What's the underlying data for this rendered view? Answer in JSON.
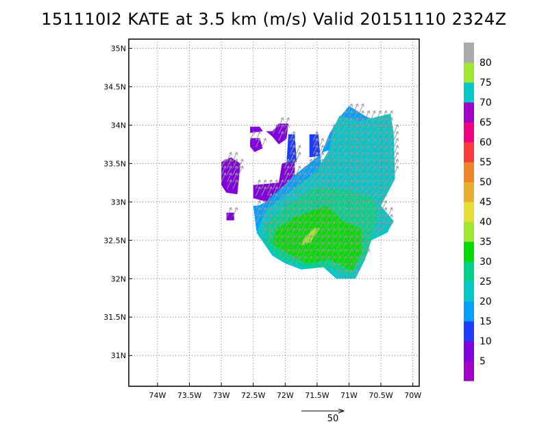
{
  "title": "151110I2 KATE at 3.5 km (m/s) Valid 20151110 2324Z",
  "chart_data": {
    "type": "heatmap",
    "title": "151110I2 KATE at 3.5 km (m/s) Valid 20151110 2324Z",
    "xlabel": "",
    "ylabel": "",
    "xlim": [
      -74.45,
      -69.9
    ],
    "ylim": [
      30.6,
      35.12
    ],
    "x_ticks": [
      {
        "value": -74.0,
        "label": "74W"
      },
      {
        "value": -73.5,
        "label": "73.5W"
      },
      {
        "value": -73.0,
        "label": "73W"
      },
      {
        "value": -72.5,
        "label": "72.5W"
      },
      {
        "value": -72.0,
        "label": "72W"
      },
      {
        "value": -71.5,
        "label": "71.5W"
      },
      {
        "value": -71.0,
        "label": "71W"
      },
      {
        "value": -70.5,
        "label": "70.5W"
      },
      {
        "value": -70.0,
        "label": "70W"
      }
    ],
    "y_ticks": [
      {
        "value": 31.0,
        "label": "31N"
      },
      {
        "value": 31.5,
        "label": "31.5N"
      },
      {
        "value": 32.0,
        "label": "32N"
      },
      {
        "value": 32.5,
        "label": "32.5N"
      },
      {
        "value": 33.0,
        "label": "33N"
      },
      {
        "value": 33.5,
        "label": "33.5N"
      },
      {
        "value": 34.0,
        "label": "34N"
      },
      {
        "value": 34.5,
        "label": "34.5N"
      },
      {
        "value": 35.0,
        "label": "35N"
      }
    ],
    "grid": true,
    "colorbar": {
      "labels": [
        "5",
        "10",
        "15",
        "20",
        "25",
        "30",
        "35",
        "40",
        "45",
        "50",
        "55",
        "60",
        "65",
        "70",
        "75",
        "80"
      ],
      "colors": [
        "#a000c8",
        "#8200dc",
        "#1e3cff",
        "#00a0ff",
        "#00c8c8",
        "#00d28c",
        "#00dc00",
        "#a0e632",
        "#e6dc32",
        "#e6af2d",
        "#f08228",
        "#fa3c3c",
        "#f00082",
        "#a000c8",
        "#00c8c8",
        "#a0e632",
        "#aaaaaa"
      ]
    },
    "regions": [
      {
        "speed_band": "0-10",
        "color": "#8200dc",
        "points": [
          [
            -72.55,
            33.98
          ],
          [
            -72.4,
            33.98
          ],
          [
            -72.35,
            33.92
          ],
          [
            -72.55,
            33.9
          ]
        ]
      },
      {
        "speed_band": "0-10",
        "color": "#8200dc",
        "points": [
          [
            -72.3,
            33.92
          ],
          [
            -72.2,
            33.92
          ],
          [
            -72.1,
            34.02
          ],
          [
            -71.95,
            34.02
          ],
          [
            -71.98,
            33.82
          ],
          [
            -72.1,
            33.75
          ],
          [
            -72.2,
            33.85
          ]
        ]
      },
      {
        "speed_band": "0-10",
        "color": "#8200dc",
        "points": [
          [
            -72.55,
            33.83
          ],
          [
            -72.4,
            33.83
          ],
          [
            -72.35,
            33.7
          ],
          [
            -72.48,
            33.65
          ],
          [
            -72.55,
            33.72
          ]
        ]
      },
      {
        "speed_band": "0-10",
        "color": "#8200dc",
        "points": [
          [
            -73.0,
            33.52
          ],
          [
            -72.85,
            33.58
          ],
          [
            -72.7,
            33.5
          ],
          [
            -72.75,
            33.1
          ],
          [
            -72.92,
            33.12
          ],
          [
            -73.0,
            33.22
          ]
        ]
      },
      {
        "speed_band": "0-10",
        "color": "#8200dc",
        "points": [
          [
            -72.5,
            33.22
          ],
          [
            -72.1,
            33.25
          ],
          [
            -72.05,
            33.5
          ],
          [
            -71.85,
            33.55
          ],
          [
            -71.85,
            33.02
          ],
          [
            -72.08,
            32.95
          ],
          [
            -72.5,
            33.05
          ]
        ]
      },
      {
        "speed_band": "0-10",
        "color": "#8200dc",
        "points": [
          [
            -72.92,
            32.86
          ],
          [
            -72.8,
            32.86
          ],
          [
            -72.8,
            32.76
          ],
          [
            -72.92,
            32.76
          ]
        ]
      },
      {
        "speed_band": "10-15",
        "color": "#1e3cff",
        "points": [
          [
            -71.95,
            33.88
          ],
          [
            -71.85,
            33.88
          ],
          [
            -71.82,
            33.52
          ],
          [
            -71.98,
            33.5
          ]
        ]
      },
      {
        "speed_band": "10-15",
        "color": "#1e3cff",
        "points": [
          [
            -71.62,
            33.88
          ],
          [
            -71.48,
            33.88
          ],
          [
            -71.45,
            33.6
          ],
          [
            -71.62,
            33.58
          ]
        ]
      },
      {
        "speed_band": "10-15",
        "color": "#1e3cff",
        "points": [
          [
            -72.2,
            33.1
          ],
          [
            -71.85,
            33.2
          ],
          [
            -71.8,
            32.92
          ],
          [
            -72.1,
            32.9
          ]
        ]
      },
      {
        "speed_band": "15-20",
        "color": "#00a0ff",
        "points": [
          [
            -71.0,
            34.25
          ],
          [
            -70.75,
            34.12
          ],
          [
            -70.55,
            34.05
          ],
          [
            -70.7,
            33.85
          ],
          [
            -71.4,
            33.65
          ],
          [
            -71.85,
            33.35
          ],
          [
            -72.3,
            33.0
          ],
          [
            -72.5,
            32.92
          ],
          [
            -72.35,
            32.78
          ],
          [
            -71.9,
            32.95
          ],
          [
            -71.4,
            33.25
          ],
          [
            -71.45,
            33.6
          ],
          [
            -71.3,
            33.9
          ],
          [
            -71.15,
            34.1
          ]
        ]
      },
      {
        "speed_band": "15-20",
        "color": "#00a0ff",
        "points": [
          [
            -72.5,
            32.95
          ],
          [
            -72.35,
            32.95
          ],
          [
            -72.3,
            32.6
          ],
          [
            -72.45,
            32.62
          ]
        ]
      },
      {
        "speed_band": "20-25",
        "color": "#00c8c8",
        "points": [
          [
            -71.15,
            34.12
          ],
          [
            -70.85,
            34.05
          ],
          [
            -70.35,
            34.15
          ],
          [
            -70.3,
            33.9
          ],
          [
            -70.28,
            33.3
          ],
          [
            -70.5,
            32.95
          ],
          [
            -70.3,
            32.75
          ],
          [
            -70.4,
            32.6
          ],
          [
            -70.65,
            32.5
          ],
          [
            -70.75,
            32.25
          ],
          [
            -70.9,
            32.0
          ],
          [
            -71.2,
            32.0
          ],
          [
            -71.4,
            32.15
          ],
          [
            -71.75,
            32.12
          ],
          [
            -72.0,
            32.2
          ],
          [
            -72.2,
            32.3
          ],
          [
            -72.35,
            32.48
          ],
          [
            -72.45,
            32.6
          ],
          [
            -72.3,
            32.9
          ],
          [
            -71.9,
            33.15
          ],
          [
            -71.5,
            33.4
          ],
          [
            -71.3,
            33.7
          ],
          [
            -71.25,
            33.95
          ]
        ]
      },
      {
        "speed_band": "25-30",
        "color": "#00d28c",
        "points": [
          [
            -71.5,
            33.2
          ],
          [
            -71.0,
            33.15
          ],
          [
            -70.6,
            33.05
          ],
          [
            -70.55,
            32.8
          ],
          [
            -70.65,
            32.55
          ],
          [
            -70.75,
            32.25
          ],
          [
            -71.0,
            32.05
          ],
          [
            -71.3,
            32.15
          ],
          [
            -71.65,
            32.15
          ],
          [
            -72.05,
            32.25
          ],
          [
            -72.3,
            32.45
          ],
          [
            -72.3,
            32.7
          ],
          [
            -72.0,
            32.95
          ],
          [
            -71.8,
            33.05
          ]
        ]
      },
      {
        "speed_band": "30-35",
        "color": "#00dc00",
        "points": [
          [
            -71.35,
            32.95
          ],
          [
            -71.1,
            32.75
          ],
          [
            -70.8,
            32.65
          ],
          [
            -70.8,
            32.35
          ],
          [
            -70.95,
            32.1
          ],
          [
            -71.3,
            32.25
          ],
          [
            -71.65,
            32.2
          ],
          [
            -71.9,
            32.3
          ],
          [
            -72.2,
            32.45
          ],
          [
            -72.15,
            32.65
          ],
          [
            -71.85,
            32.8
          ],
          [
            -71.6,
            32.88
          ]
        ]
      },
      {
        "speed_band": "35-40",
        "color": "#a0e632",
        "points": [
          [
            -71.55,
            32.66
          ],
          [
            -71.45,
            32.66
          ],
          [
            -71.6,
            32.48
          ],
          [
            -71.75,
            32.43
          ],
          [
            -71.72,
            32.51
          ]
        ]
      }
    ],
    "vector_field": {
      "component": "wind vectors",
      "reference_vector": {
        "label": "50",
        "magnitude": 50
      }
    }
  }
}
